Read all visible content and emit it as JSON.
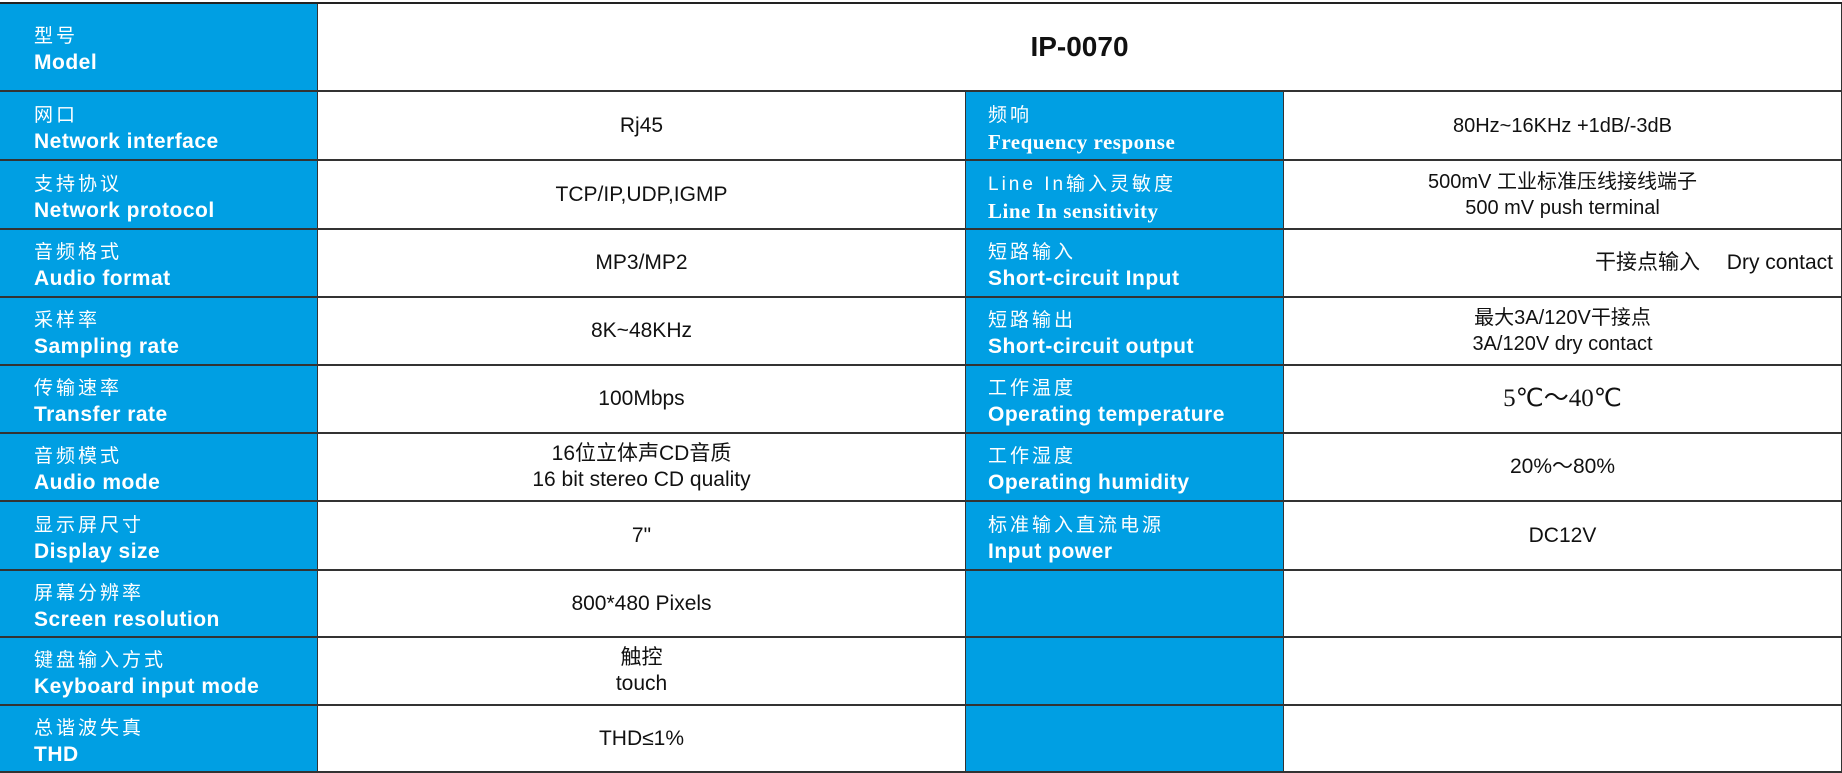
{
  "model": {
    "zh": "型号",
    "en": "Model",
    "value": "IP-0070"
  },
  "left": [
    {
      "zh": "网口",
      "en": "Network interface",
      "v1": "Rj45",
      "v2": ""
    },
    {
      "zh": "支持协议",
      "en": "Network protocol",
      "v1": "TCP/IP,UDP,IGMP",
      "v2": ""
    },
    {
      "zh": "音频格式",
      "en": "Audio format",
      "v1": "MP3/MP2",
      "v2": ""
    },
    {
      "zh": "采样率",
      "en": "Sampling rate",
      "v1": "8K~48KHz",
      "v2": ""
    },
    {
      "zh": "传输速率",
      "en": "Transfer rate",
      "v1": "100Mbps",
      "v2": ""
    },
    {
      "zh": "音频模式",
      "en": "Audio mode",
      "v1": "16位立体声CD音质",
      "v2": "16 bit stereo CD quality"
    },
    {
      "zh": "显示屏尺寸",
      "en": "Display size",
      "v1": "7\"",
      "v2": ""
    },
    {
      "zh": "屏幕分辨率",
      "en": "Screen resolution",
      "v1": "800*480 Pixels",
      "v2": ""
    },
    {
      "zh": "键盘输入方式",
      "en": "Keyboard input mode",
      "v1": "触控",
      "v2": "touch"
    },
    {
      "zh": "总谐波失真",
      "en": "THD",
      "v1": "THD≤1%",
      "v2": ""
    }
  ],
  "right": [
    {
      "zh": "频响",
      "en": "Frequency response",
      "v1": "80Hz~16KHz +1dB/-3dB",
      "v2": ""
    },
    {
      "zh": "Line In输入灵敏度",
      "en": "Line In sensitivity",
      "v1": "500mV 工业标准压线接线端子",
      "v2": "500 mV push terminal"
    },
    {
      "zh": "短路输入",
      "en": "Short-circuit  Input",
      "v1": "干接点输入　 Dry contact",
      "v2": ""
    },
    {
      "zh": "短路输出",
      "en": "Short-circuit  output",
      "v1": "最大3A/120V干接点",
      "v2": "3A/120V dry contact"
    },
    {
      "zh": "工作温度",
      "en": "Operating temperature",
      "v1": "5℃～40℃",
      "v2": ""
    },
    {
      "zh": "工作湿度",
      "en": "Operating humidity",
      "v1": "20%～80%",
      "v2": ""
    },
    {
      "zh": "标准输入直流电源",
      "en": "Input power",
      "v1": "DC12V",
      "v2": ""
    },
    {
      "zh": "",
      "en": "",
      "v1": "",
      "v2": ""
    },
    {
      "zh": "",
      "en": "",
      "v1": "",
      "v2": ""
    },
    {
      "zh": "",
      "en": "",
      "v1": "",
      "v2": ""
    }
  ],
  "colors": {
    "label_bg": "#009fe3",
    "label_text": "#ffffff"
  }
}
